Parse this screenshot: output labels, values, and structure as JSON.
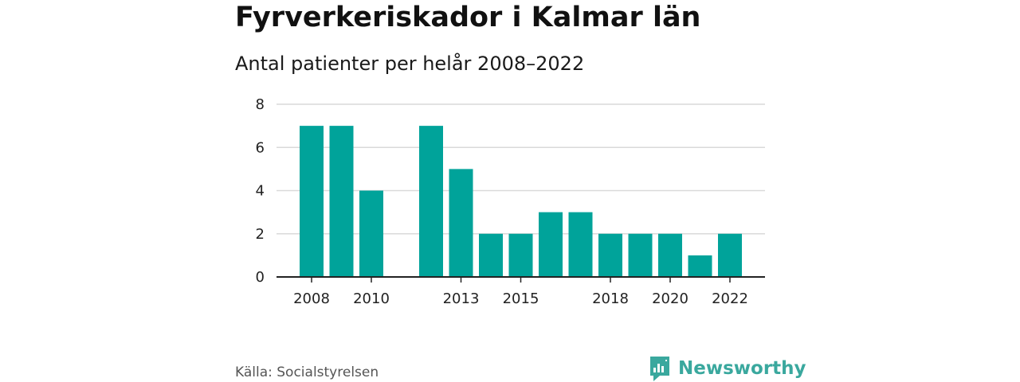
{
  "title": "Fyrverkeriskador i Kalmar län",
  "subtitle": "Antal patienter per helår 2008–2022",
  "source": "Källa: Socialstyrelsen",
  "brand": {
    "name": "Newsworthy",
    "icon": "newsworthy-logo-icon",
    "color": "#3aa89e"
  },
  "chart_data": {
    "type": "bar",
    "title": "Fyrverkeriskador i Kalmar län",
    "subtitle": "Antal patienter per helår 2008–2022",
    "xlabel": "",
    "ylabel": "",
    "categories": [
      "2008",
      "2009",
      "2010",
      "2011",
      "2012",
      "2013",
      "2014",
      "2015",
      "2016",
      "2017",
      "2018",
      "2019",
      "2020",
      "2021",
      "2022"
    ],
    "values": [
      7,
      7,
      4,
      null,
      7,
      5,
      2,
      2,
      3,
      3,
      2,
      2,
      2,
      1,
      2
    ],
    "x_tick_labels": [
      "2008",
      "2010",
      "2013",
      "2015",
      "2018",
      "2020",
      "2022"
    ],
    "y_ticks": [
      0,
      2,
      4,
      6,
      8
    ],
    "ylim": [
      0,
      8
    ],
    "grid": true,
    "bar_color": "#00a39a"
  }
}
